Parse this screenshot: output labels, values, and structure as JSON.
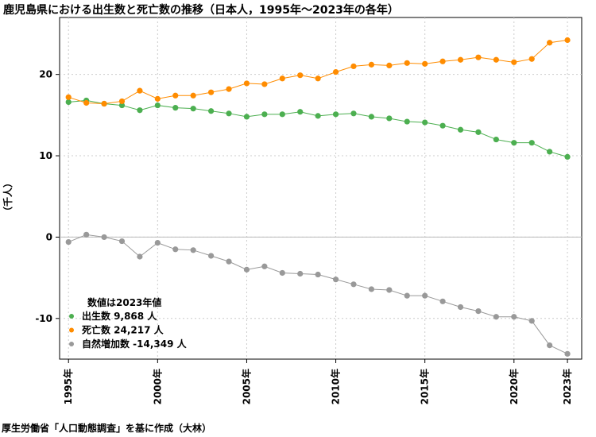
{
  "title": "鹿児島県における出生数と死亡数の推移（日本人，1995年～2023年の各年）",
  "source": "厚生労働省「人口動態調査」を基に作成（大林）",
  "chart_data": {
    "type": "line",
    "ylabel": "（千人）",
    "ylim": [
      -15,
      27
    ],
    "yticks": [
      -10,
      0,
      10,
      20
    ],
    "xlim": [
      1994.5,
      2023.8
    ],
    "xticks": [
      1995,
      2000,
      2005,
      2010,
      2015,
      2020,
      2023
    ],
    "xtick_labels": [
      "1995年",
      "2000年",
      "2005年",
      "2010年",
      "2015年",
      "2020年",
      "2023年"
    ],
    "grid": true,
    "legend_position": "bottom-left",
    "legend_title": "数値は2023年値",
    "x": [
      1995,
      1996,
      1997,
      1998,
      1999,
      2000,
      2001,
      2002,
      2003,
      2004,
      2005,
      2006,
      2007,
      2008,
      2009,
      2010,
      2011,
      2012,
      2013,
      2014,
      2015,
      2016,
      2017,
      2018,
      2019,
      2020,
      2021,
      2022,
      2023
    ],
    "series": [
      {
        "name": "出生数",
        "legend_label": "出生数 9,868 人",
        "color": "#4caf50",
        "values": [
          16.6,
          16.8,
          16.4,
          16.2,
          15.6,
          16.2,
          15.9,
          15.8,
          15.5,
          15.2,
          14.8,
          15.1,
          15.1,
          15.4,
          14.9,
          15.1,
          15.2,
          14.8,
          14.6,
          14.2,
          14.1,
          13.7,
          13.2,
          12.9,
          12.0,
          11.6,
          11.6,
          10.5,
          9.868
        ]
      },
      {
        "name": "死亡数",
        "legend_label": "死亡数 24,217 人",
        "color": "#ff8c00",
        "values": [
          17.2,
          16.5,
          16.4,
          16.7,
          18.0,
          17.0,
          17.4,
          17.4,
          17.8,
          18.2,
          18.9,
          18.8,
          19.5,
          19.9,
          19.5,
          20.3,
          21.0,
          21.2,
          21.1,
          21.4,
          21.3,
          21.6,
          21.8,
          22.1,
          21.8,
          21.5,
          21.9,
          23.9,
          24.217
        ]
      },
      {
        "name": "自然増加数",
        "legend_label": "自然増加数 -14,349 人",
        "color": "#999999",
        "values": [
          -0.6,
          0.3,
          0.0,
          -0.5,
          -2.4,
          -0.7,
          -1.5,
          -1.6,
          -2.3,
          -3.0,
          -4.0,
          -3.6,
          -4.4,
          -4.5,
          -4.6,
          -5.2,
          -5.8,
          -6.4,
          -6.5,
          -7.2,
          -7.2,
          -7.9,
          -8.6,
          -9.1,
          -9.8,
          -9.8,
          -10.3,
          -13.3,
          -14.349
        ]
      }
    ]
  }
}
